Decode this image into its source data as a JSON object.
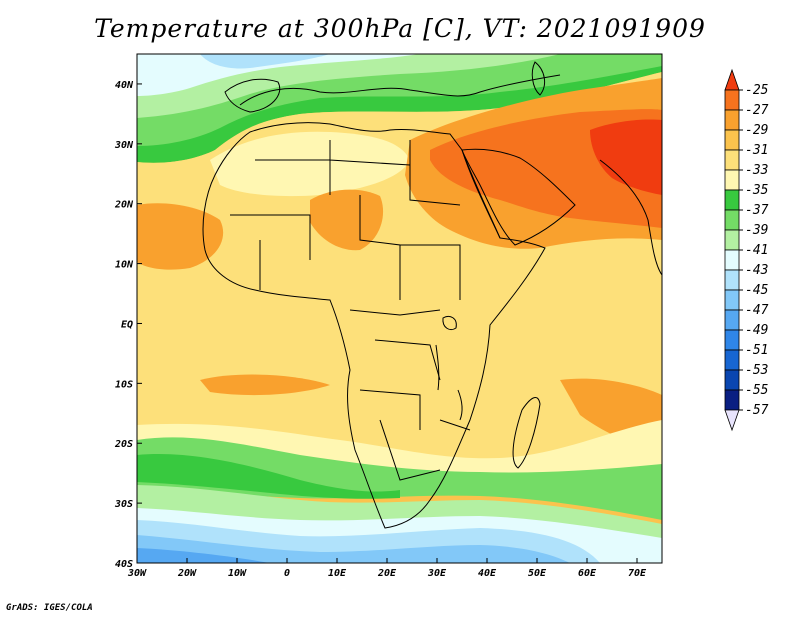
{
  "title": "Temperature at 300hPa [C], VT: 2021091909",
  "credit": "GrADS: IGES/COLA",
  "map": {
    "region": "Africa",
    "lon_range": [
      -30,
      75
    ],
    "lat_range": [
      -40,
      45
    ],
    "lon_ticks": [
      "30W",
      "20W",
      "10W",
      "0",
      "10E",
      "20E",
      "30E",
      "40E",
      "50E",
      "60E",
      "70E"
    ],
    "lat_ticks": [
      "40S",
      "30S",
      "20S",
      "10S",
      "EQ",
      "10N",
      "20N",
      "30N",
      "40N"
    ]
  },
  "colorbar": {
    "labels": [
      "-25",
      "-27",
      "-29",
      "-31",
      "-33",
      "-35",
      "-37",
      "-39",
      "-41",
      "-43",
      "-45",
      "-47",
      "-49",
      "-51",
      "-53",
      "-55",
      "-57"
    ],
    "colors": [
      "#f03c10",
      "#f6731e",
      "#f9a12e",
      "#fbc34d",
      "#fde07a",
      "#fff7b2",
      "#38c93f",
      "#74dc66",
      "#b3f0a2",
      "#e4fcfe",
      "#b0e2fb",
      "#82c8f8",
      "#56a8f2",
      "#2f86e8",
      "#1766d2",
      "#0a46b0",
      "#0a1f82",
      "#e8e4fc"
    ]
  }
}
